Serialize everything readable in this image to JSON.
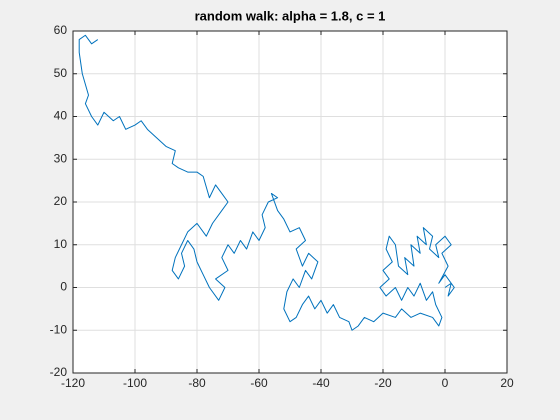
{
  "chart_data": {
    "type": "line",
    "title": "random walk: alpha = 1.8, c = 1",
    "xlim": [
      -120,
      20
    ],
    "xticks": [
      -120,
      -100,
      -80,
      -60,
      -40,
      -20,
      0,
      20
    ],
    "ylim": [
      -20,
      60
    ],
    "yticks": [
      -20,
      -10,
      0,
      10,
      20,
      30,
      40,
      50,
      60
    ],
    "grid": true,
    "color": "#0072bd",
    "x": [
      0,
      2,
      1,
      3,
      0,
      -2,
      1,
      -1,
      2,
      0,
      -3,
      -2,
      -5,
      -4,
      -7,
      -6,
      -9,
      -8,
      -11,
      -10,
      -13,
      -12,
      -15,
      -16,
      -18,
      -19,
      -17,
      -20,
      -18,
      -21,
      -19,
      -16,
      -14,
      -12,
      -10,
      -8,
      -6,
      -4,
      -3,
      -1,
      -2,
      -4,
      -8,
      -11,
      -14,
      -16,
      -20,
      -23,
      -26,
      -28,
      -30,
      -31,
      -34,
      -36,
      -38,
      -40,
      -42,
      -44,
      -46,
      -48,
      -50,
      -52,
      -51,
      -49,
      -47,
      -45,
      -43,
      -41,
      -44,
      -46,
      -48,
      -45,
      -47,
      -50,
      -52,
      -54,
      -56,
      -54,
      -57,
      -59,
      -58,
      -60,
      -62,
      -64,
      -66,
      -68,
      -70,
      -72,
      -70,
      -74,
      -71,
      -73,
      -76,
      -78,
      -80,
      -81,
      -83,
      -85,
      -84,
      -86,
      -88,
      -87,
      -85,
      -83,
      -80,
      -77,
      -75,
      -72,
      -70,
      -72,
      -74,
      -76,
      -78,
      -80,
      -83,
      -86,
      -88,
      -87,
      -90,
      -93,
      -96,
      -98,
      -100,
      -103,
      -105,
      -107,
      -110,
      -112,
      -114,
      -116,
      -115,
      -117,
      -118,
      -118,
      -116,
      -114,
      -112
    ],
    "y": [
      0,
      1,
      -2,
      0,
      3,
      1,
      5,
      8,
      10,
      12,
      10,
      7,
      9,
      12,
      14,
      10,
      12,
      8,
      10,
      5,
      7,
      3,
      5,
      10,
      12,
      9,
      6,
      4,
      2,
      0,
      -2,
      0,
      -3,
      0,
      -2,
      1,
      -3,
      -1,
      -4,
      -7,
      -9,
      -7,
      -6,
      -7,
      -5,
      -7,
      -6,
      -8,
      -7,
      -9,
      -10,
      -8,
      -7,
      -4,
      -6,
      -3,
      -5,
      -2,
      -4,
      -7,
      -8,
      -5,
      -1,
      2,
      0,
      4,
      2,
      6,
      8,
      5,
      9,
      11,
      14,
      13,
      16,
      18,
      22,
      21,
      20,
      17,
      14,
      11,
      13,
      9,
      11,
      8,
      10,
      7,
      4,
      2,
      0,
      -3,
      0,
      3,
      6,
      9,
      11,
      8,
      5,
      2,
      4,
      7,
      10,
      13,
      15,
      12,
      15,
      18,
      20,
      22,
      24,
      21,
      26,
      27,
      27,
      28,
      29,
      32,
      33,
      35,
      37,
      39,
      38,
      37,
      40,
      39,
      41,
      38,
      40,
      43,
      45,
      50,
      55,
      58,
      59,
      57,
      58
    ]
  }
}
